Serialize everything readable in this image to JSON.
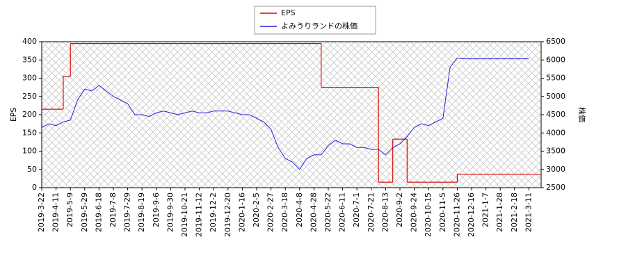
{
  "chart_data": {
    "type": "line",
    "legend": "upper center",
    "ylabel": "EPS",
    "y2label": "株価",
    "categories": [
      "2019-3-22",
      null,
      "2019-4-11",
      null,
      "2019-5-9",
      null,
      "2019-5-29",
      null,
      "2019-6-18",
      null,
      "2019-7-8",
      null,
      "2019-7-29",
      null,
      "2019-8-19",
      null,
      "2019-9-6",
      null,
      "2019-9-30",
      null,
      "2019-10-21",
      null,
      "2019-11-12",
      null,
      "2019-12-2",
      null,
      "2019-12-20",
      null,
      "2020-1-16",
      null,
      "2020-2-5",
      null,
      "2020-2-27",
      null,
      "2020-3-18",
      null,
      "2020-4-8",
      null,
      "2020-4-28",
      null,
      "2020-5-22",
      null,
      "2020-6-11",
      null,
      "2020-7-1",
      null,
      "2020-7-21",
      null,
      "2020-8-13",
      null,
      "2020-9-2",
      null,
      "2020-9-24",
      null,
      "2020-10-15",
      null,
      "2020-11-5",
      null,
      "2020-11-26",
      null,
      "2020-12-16",
      null,
      "2021-1-7",
      null,
      "2021-1-28",
      null,
      "2021-2-18",
      null,
      "2021-3-11"
    ],
    "series": [
      {
        "name": "EPS",
        "color": "#dd0000",
        "step": true,
        "values": [
          215,
          215,
          215,
          305,
          395,
          395,
          395,
          395,
          395,
          395,
          395,
          395,
          395,
          395,
          395,
          395,
          395,
          395,
          395,
          395,
          395,
          395,
          395,
          395,
          395,
          395,
          395,
          395,
          395,
          395,
          395,
          395,
          395,
          395,
          395,
          395,
          395,
          395,
          395,
          275,
          275,
          275,
          275,
          275,
          275,
          275,
          275,
          15,
          15,
          133,
          133,
          15,
          15,
          15,
          15,
          15,
          15,
          15,
          37,
          37,
          37,
          37,
          37,
          37,
          37,
          37,
          37,
          37,
          37
        ]
      },
      {
        "name": "よみうりランドの株価",
        "color": "#2222dd",
        "axis": "y2",
        "values": [
          4150,
          4250,
          4200,
          4300,
          4350,
          4900,
          5200,
          5150,
          5300,
          5150,
          5000,
          4900,
          4800,
          4500,
          4500,
          4450,
          4550,
          4600,
          4550,
          4500,
          4550,
          4600,
          4550,
          4550,
          4600,
          4600,
          4600,
          4550,
          4500,
          4500,
          4400,
          4300,
          4100,
          3600,
          3300,
          3200,
          3000,
          3300,
          3400,
          3400,
          3650,
          3800,
          3700,
          3700,
          3600,
          3600,
          3550,
          3550,
          3400,
          3600,
          3700,
          3900,
          4150,
          4250,
          4200,
          4300,
          4400,
          5800,
          6050,
          6030,
          6030,
          6030,
          6030,
          6030,
          6030,
          6030,
          6030,
          6030,
          6030
        ]
      }
    ],
    "ylim": [
      0,
      400
    ],
    "yticks": [
      0,
      50,
      100,
      150,
      200,
      250,
      300,
      350,
      400
    ],
    "y2lim": [
      2500,
      6500
    ],
    "y2ticks": [
      2500,
      3000,
      3500,
      4000,
      4500,
      5000,
      5500,
      6000,
      6500
    ]
  }
}
